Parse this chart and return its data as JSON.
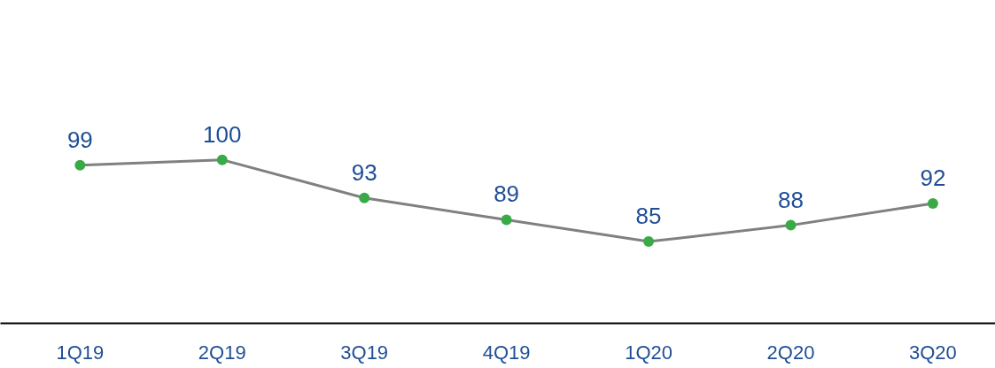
{
  "chart_data": {
    "type": "line",
    "categories": [
      "1Q19",
      "2Q19",
      "3Q19",
      "4Q19",
      "1Q20",
      "2Q20",
      "3Q20"
    ],
    "series": [
      {
        "color": "#808080",
        "values": [
          99,
          100,
          93,
          89,
          85,
          88,
          92
        ]
      }
    ],
    "data_labels": true,
    "marker": "circle",
    "grid": false,
    "tick_labels": "x",
    "line_style": "solid"
  }
}
